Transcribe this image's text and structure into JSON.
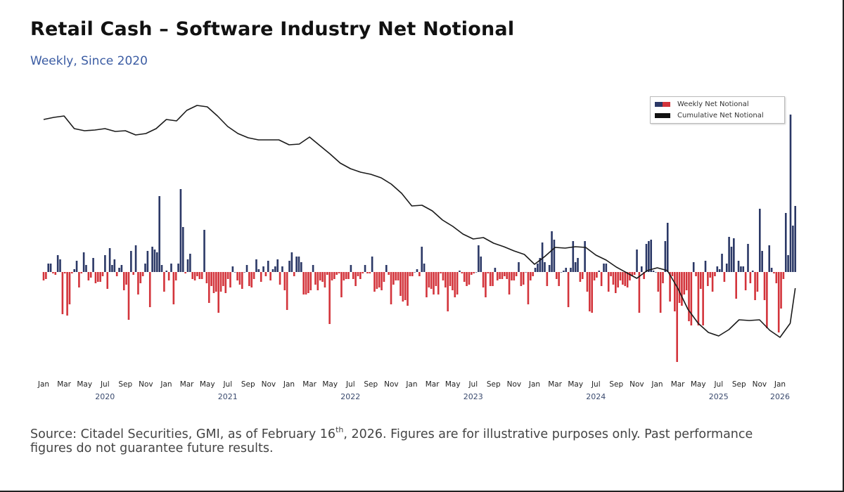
{
  "header": {
    "title": "Retail Cash – Software Industry Net Notional",
    "subtitle": "Weekly, Since 2020"
  },
  "footer": {
    "text_before": "Source: Citadel Securities, GMI, as of February 16",
    "superscript": "th",
    "text_after": ", 2026. Figures are for illustrative purposes only. Past performance figures do not guarantee future results."
  },
  "colors": {
    "positive_bar": "#2b3866",
    "negative_bar": "#d3343b",
    "cumulative_line": "#1a1a1a",
    "year_label": "#3a4a6e"
  },
  "chart_data": {
    "type": "bar+line",
    "title": "Retail Cash – Software Industry Net Notional",
    "subtitle": "Weekly, Since 2020",
    "x_range": [
      "2020-01",
      "2026-02-16"
    ],
    "grid": false,
    "y_axis_labels_shown": false,
    "legend": {
      "placement": "top-right",
      "entries": [
        "Weekly Net Notional",
        "Cumulative Net Notional"
      ]
    },
    "x_ticks": [
      {
        "date": "2020-01",
        "label": "Jan"
      },
      {
        "date": "2020-03",
        "label": "Mar"
      },
      {
        "date": "2020-05",
        "label": "May"
      },
      {
        "date": "2020-07",
        "label": "Jul"
      },
      {
        "date": "2020-09",
        "label": "Sep"
      },
      {
        "date": "2020-11",
        "label": "Nov"
      },
      {
        "date": "2021-01",
        "label": "Jan"
      },
      {
        "date": "2021-03",
        "label": "Mar"
      },
      {
        "date": "2021-05",
        "label": "May"
      },
      {
        "date": "2021-07",
        "label": "Jul"
      },
      {
        "date": "2021-09",
        "label": "Sep"
      },
      {
        "date": "2021-11",
        "label": "Nov"
      },
      {
        "date": "2022-01",
        "label": "Jan"
      },
      {
        "date": "2022-03",
        "label": "Mar"
      },
      {
        "date": "2022-05",
        "label": "May"
      },
      {
        "date": "2022-07",
        "label": "Jul"
      },
      {
        "date": "2022-09",
        "label": "Sep"
      },
      {
        "date": "2022-11",
        "label": "Nov"
      },
      {
        "date": "2023-01",
        "label": "Jan"
      },
      {
        "date": "2023-03",
        "label": "Mar"
      },
      {
        "date": "2023-05",
        "label": "May"
      },
      {
        "date": "2023-07",
        "label": "Jul"
      },
      {
        "date": "2023-09",
        "label": "Sep"
      },
      {
        "date": "2023-11",
        "label": "Nov"
      },
      {
        "date": "2024-01",
        "label": "Jan"
      },
      {
        "date": "2024-03",
        "label": "Mar"
      },
      {
        "date": "2024-05",
        "label": "May"
      },
      {
        "date": "2024-07",
        "label": "Jul"
      },
      {
        "date": "2024-09",
        "label": "Sep"
      },
      {
        "date": "2024-11",
        "label": "Nov"
      },
      {
        "date": "2025-01",
        "label": "Jan"
      },
      {
        "date": "2025-03",
        "label": "Mar"
      },
      {
        "date": "2025-05",
        "label": "May"
      },
      {
        "date": "2025-07",
        "label": "Jul"
      },
      {
        "date": "2025-09",
        "label": "Sep"
      },
      {
        "date": "2025-11",
        "label": "Nov"
      },
      {
        "date": "2026-01",
        "label": "Jan"
      }
    ],
    "year_labels": [
      {
        "date": "2020-07",
        "label": "2020"
      },
      {
        "date": "2021-07",
        "label": "2021"
      },
      {
        "date": "2022-07",
        "label": "2022"
      },
      {
        "date": "2023-07",
        "label": "2023"
      },
      {
        "date": "2024-07",
        "label": "2024"
      },
      {
        "date": "2025-07",
        "label": "2025"
      },
      {
        "date": "2026-01",
        "label": "2026"
      }
    ],
    "series": [
      {
        "name": "Weekly Net Notional",
        "type": "bar",
        "frequency": "weekly",
        "ylim": [
          -69,
          123.5
        ],
        "values": [
          -6,
          -5,
          6,
          6,
          -1,
          -2,
          12,
          9,
          -30,
          -1,
          -31,
          -23,
          -1,
          2,
          8,
          -11,
          -1,
          14,
          5,
          -6,
          -4,
          10,
          -8,
          -7,
          -7,
          -3,
          12,
          -12,
          17,
          5,
          9,
          -3,
          3,
          5,
          -13,
          -9,
          -34,
          15,
          -2,
          19,
          -16,
          -8,
          -3,
          6,
          15,
          -25,
          18,
          16,
          14,
          54,
          5,
          -14,
          1,
          -6,
          6,
          -23,
          -6,
          6,
          59,
          32,
          -1,
          9,
          13,
          -5,
          -6,
          -3,
          -5,
          -5,
          30,
          -8,
          -22,
          -10,
          -15,
          -14,
          -29,
          -14,
          -10,
          -15,
          -5,
          -11,
          4,
          0,
          -6,
          -9,
          -12,
          0,
          5,
          -10,
          -11,
          -5,
          9,
          2,
          -7,
          4,
          -3,
          8,
          -6,
          2,
          4,
          9,
          -9,
          4,
          -13,
          -27,
          8,
          14,
          -3,
          11,
          11,
          7,
          -16,
          -16,
          -15,
          -13,
          5,
          -9,
          -13,
          -6,
          -7,
          -11,
          -2,
          -37,
          -6,
          -5,
          -2,
          -1,
          -18,
          -6,
          -5,
          -5,
          5,
          -5,
          -10,
          -3,
          -5,
          -1,
          5,
          -1,
          -1,
          11,
          -14,
          -12,
          -11,
          -13,
          -7,
          5,
          -2,
          -23,
          -9,
          -6,
          -6,
          -17,
          -21,
          -20,
          -24,
          -3,
          -3,
          0,
          2,
          -3,
          18,
          6,
          -18,
          -11,
          -12,
          -16,
          -10,
          -16,
          -1,
          -6,
          -11,
          -28,
          -10,
          -13,
          -18,
          -16,
          1,
          -1,
          -7,
          -10,
          -9,
          -2,
          -1,
          0,
          19,
          11,
          -11,
          -18,
          -1,
          -10,
          -10,
          3,
          -6,
          -5,
          -5,
          -3,
          -5,
          -16,
          -6,
          -6,
          -3,
          7,
          -10,
          -9,
          0,
          -23,
          -6,
          -3,
          3,
          6,
          10,
          21,
          7,
          -10,
          5,
          29,
          23,
          -5,
          -10,
          0,
          1,
          3,
          -25,
          3,
          22,
          7,
          10,
          -7,
          -5,
          22,
          -14,
          -28,
          -29,
          -6,
          -4,
          1,
          -10,
          6,
          6,
          -14,
          -3,
          -9,
          -15,
          -11,
          -6,
          -9,
          -10,
          -11,
          -6,
          -3,
          -2,
          16,
          -29,
          4,
          -5,
          20,
          22,
          23,
          1,
          0,
          -14,
          -29,
          -8,
          22,
          35,
          -21,
          -3,
          -28,
          -64,
          -22,
          -24,
          -16,
          -13,
          -35,
          -38,
          7,
          -3,
          -38,
          -12,
          -38,
          8,
          -10,
          -4,
          -14,
          -3,
          4,
          2,
          13,
          -7,
          6,
          25,
          18,
          24,
          -19,
          8,
          4,
          4,
          -13,
          20,
          -8,
          1,
          -20,
          -14,
          45,
          15,
          -20,
          -40,
          19,
          3,
          -1,
          -8,
          -43,
          -26,
          -5,
          42,
          12,
          112,
          33,
          47
        ]
      },
      {
        "name": "Cumulative Net Notional",
        "type": "line",
        "ylim": [
          -177.5,
          15
        ],
        "points": [
          [
            "2020-01",
            0
          ],
          [
            "2020-02",
            1.5
          ],
          [
            "2020-03",
            2.5
          ],
          [
            "2020-04",
            -6.5
          ],
          [
            "2020-05",
            -8
          ],
          [
            "2020-06",
            -7.5
          ],
          [
            "2020-07",
            -6.5
          ],
          [
            "2020-08",
            -8.5
          ],
          [
            "2020-09",
            -8
          ],
          [
            "2020-10",
            -11
          ],
          [
            "2020-11",
            -10
          ],
          [
            "2020-12",
            -6.5
          ],
          [
            "2021-01",
            0
          ],
          [
            "2021-02",
            -1
          ],
          [
            "2021-03",
            6.5
          ],
          [
            "2021-04",
            10
          ],
          [
            "2021-05",
            9
          ],
          [
            "2021-06",
            2.5
          ],
          [
            "2021-07",
            -5
          ],
          [
            "2021-08",
            -10
          ],
          [
            "2021-09",
            -13
          ],
          [
            "2021-10",
            -14.5
          ],
          [
            "2021-11",
            -14.5
          ],
          [
            "2021-12",
            -14.5
          ],
          [
            "2022-01",
            -18
          ],
          [
            "2022-02",
            -17.5
          ],
          [
            "2022-03",
            -12.5
          ],
          [
            "2022-04",
            -18.5
          ],
          [
            "2022-05",
            -24.5
          ],
          [
            "2022-06",
            -31
          ],
          [
            "2022-07",
            -35
          ],
          [
            "2022-08",
            -37.5
          ],
          [
            "2022-09",
            -39
          ],
          [
            "2022-10",
            -41.5
          ],
          [
            "2022-11",
            -46
          ],
          [
            "2022-12",
            -52.5
          ],
          [
            "2023-01",
            -61.5
          ],
          [
            "2023-02",
            -61
          ],
          [
            "2023-03",
            -65
          ],
          [
            "2023-04",
            -71.5
          ],
          [
            "2023-05",
            -76
          ],
          [
            "2023-06",
            -81.5
          ],
          [
            "2023-07",
            -85
          ],
          [
            "2023-08",
            -84
          ],
          [
            "2023-09",
            -88
          ],
          [
            "2023-10",
            -90.5
          ],
          [
            "2023-11",
            -93.5
          ],
          [
            "2023-12",
            -96
          ],
          [
            "2024-01",
            -103
          ],
          [
            "2024-02",
            -97.5
          ],
          [
            "2024-03",
            -91
          ],
          [
            "2024-04",
            -91.5
          ],
          [
            "2024-05",
            -90.5
          ],
          [
            "2024-06",
            -91
          ],
          [
            "2024-07",
            -96.5
          ],
          [
            "2024-08",
            -100
          ],
          [
            "2024-09",
            -105
          ],
          [
            "2024-10",
            -109
          ],
          [
            "2024-11",
            -113
          ],
          [
            "2024-12",
            -107.5
          ],
          [
            "2025-01",
            -105.5
          ],
          [
            "2025-02",
            -107.5
          ],
          [
            "2025-03",
            -120
          ],
          [
            "2025-04",
            -135
          ],
          [
            "2025-05",
            -145
          ],
          [
            "2025-06",
            -151.5
          ],
          [
            "2025-07",
            -154
          ],
          [
            "2025-08",
            -149.5
          ],
          [
            "2025-09",
            -142.5
          ],
          [
            "2025-10",
            -143
          ],
          [
            "2025-11",
            -142.5
          ],
          [
            "2025-12",
            -150
          ],
          [
            "2026-01",
            -155
          ],
          [
            "2026-02",
            -145
          ],
          [
            "2026-02-16",
            -120
          ]
        ]
      }
    ]
  }
}
